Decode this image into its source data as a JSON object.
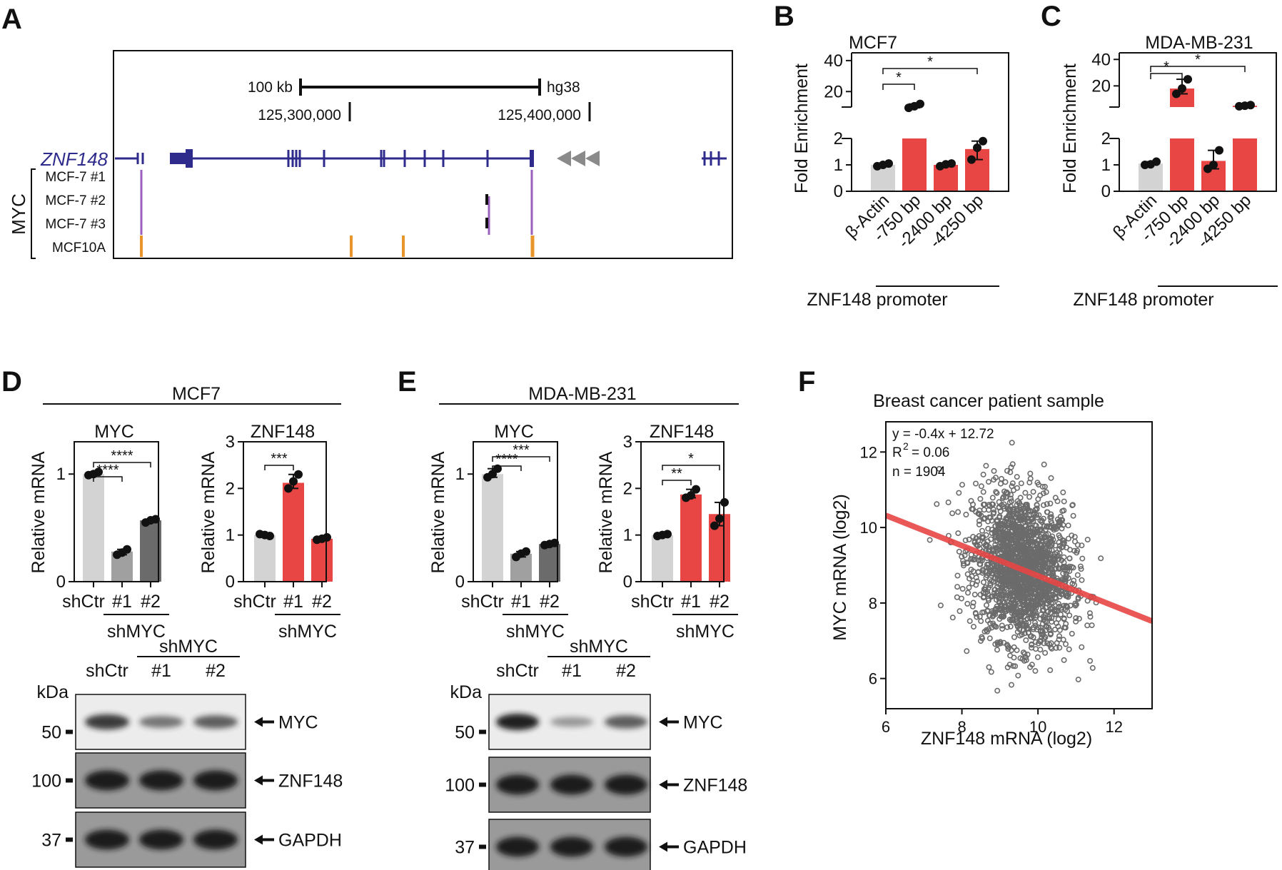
{
  "panels": {
    "A": {
      "letter": "A",
      "scale_label": "100 kb",
      "assembly": "hg38",
      "coord_left": "125,300,000",
      "coord_right": "125,400,000",
      "gene": "ZNF148",
      "group_label": "MYC",
      "tracks": [
        "MCF-7 #1",
        "MCF-7 #2",
        "MCF-7 #3",
        "MCF10A"
      ],
      "colors": {
        "gene": "#2e2b8c",
        "mcf7": "#9b5fc0",
        "mcf10a": "#e8962b",
        "arrows": "#8a8a8a"
      }
    },
    "B": {
      "letter": "B"
    },
    "C": {
      "letter": "C"
    },
    "D": {
      "letter": "D",
      "cell_line": "MCF7"
    },
    "E": {
      "letter": "E",
      "cell_line": "MDA-MB-231"
    },
    "F": {
      "letter": "F"
    }
  },
  "chart_data": [
    {
      "id": "B",
      "type": "bar",
      "title": "MCF7",
      "ylabel": "Fold Enrichment",
      "categories": [
        "β-Actin",
        "-750 bp",
        "-2400 bp",
        "-4250 bp"
      ],
      "group_label": "ZNF148 promoter",
      "values": [
        1.0,
        10.0,
        1.0,
        1.6
      ],
      "points": [
        [
          0.95,
          1.05,
          1.0
        ],
        [
          9.5,
          12.0,
          10.5
        ],
        [
          0.95,
          1.05,
          1.02
        ],
        [
          1.2,
          1.9,
          1.65
        ]
      ],
      "bar_colors": [
        "#d3d3d3",
        "#e84545",
        "#e84545",
        "#e84545"
      ],
      "y_ticks_low": [
        0,
        1,
        2
      ],
      "y_ticks_high": [
        20,
        40
      ],
      "ylim_low": [
        0,
        2
      ],
      "ylim_high": [
        10,
        45
      ],
      "axis_break": true,
      "significance": [
        {
          "from": 0,
          "to": 1,
          "label": "*"
        },
        {
          "from": 0,
          "to": 3,
          "label": "*"
        }
      ]
    },
    {
      "id": "C",
      "type": "bar",
      "title": "MDA-MB-231",
      "ylabel": "Fold Enrichment",
      "categories": [
        "β-Actin",
        "-750 bp",
        "-2400 bp",
        "-4250 bp"
      ],
      "group_label": "ZNF148 promoter",
      "values": [
        1.05,
        18.0,
        1.15,
        5.0
      ],
      "points": [
        [
          1.0,
          1.12,
          1.02
        ],
        [
          14.0,
          25.0,
          18.0
        ],
        [
          0.85,
          1.55,
          1.0
        ],
        [
          4.6,
          5.5,
          5.0
        ]
      ],
      "bar_colors": [
        "#d3d3d3",
        "#e84545",
        "#e84545",
        "#e84545"
      ],
      "y_ticks_low": [
        0,
        1,
        2
      ],
      "y_ticks_high": [
        20,
        40
      ],
      "ylim_low": [
        0,
        2
      ],
      "ylim_high": [
        4,
        45
      ],
      "axis_break": true,
      "significance": [
        {
          "from": 0,
          "to": 1,
          "label": "*"
        },
        {
          "from": 0,
          "to": 3,
          "label": "*"
        }
      ]
    },
    {
      "id": "D1",
      "type": "bar",
      "title": "MYC",
      "ylabel": "Relative mRNA",
      "categories": [
        "shCtr",
        "#1",
        "#2"
      ],
      "group_label": "shMYC",
      "values": [
        1.0,
        0.28,
        0.57
      ],
      "points": [
        [
          0.99,
          1.02,
          1.0
        ],
        [
          0.25,
          0.3,
          0.27
        ],
        [
          0.55,
          0.58,
          0.57
        ]
      ],
      "bar_colors": [
        "#d3d3d3",
        "#a0a0a0",
        "#6b6b6b"
      ],
      "y_ticks": [
        0,
        1
      ],
      "ylim": [
        0,
        1.3
      ],
      "significance": [
        {
          "from": 0,
          "to": 1,
          "label": "****"
        },
        {
          "from": 0,
          "to": 2,
          "label": "****"
        }
      ]
    },
    {
      "id": "D2",
      "type": "bar",
      "title": "ZNF148",
      "ylabel": "Relative mRNA",
      "categories": [
        "shCtr",
        "#1",
        "#2"
      ],
      "group_label": "shMYC",
      "values": [
        1.0,
        2.12,
        0.92
      ],
      "points": [
        [
          1.02,
          0.98,
          1.0
        ],
        [
          2.0,
          2.3,
          2.15
        ],
        [
          0.9,
          0.95,
          0.92
        ]
      ],
      "bar_colors": [
        "#d3d3d3",
        "#e84545",
        "#e84545"
      ],
      "y_ticks": [
        0,
        1,
        2,
        3
      ],
      "ylim": [
        0,
        3
      ],
      "significance": [
        {
          "from": 0,
          "to": 1,
          "label": "***"
        }
      ]
    },
    {
      "id": "E1",
      "type": "bar",
      "title": "MYC",
      "ylabel": "Relative mRNA",
      "categories": [
        "shCtr",
        "#1",
        "#2"
      ],
      "group_label": "shMYC",
      "values": [
        1.0,
        0.26,
        0.35
      ],
      "points": [
        [
          0.97,
          1.05,
          1.0
        ],
        [
          0.23,
          0.28,
          0.26
        ],
        [
          0.34,
          0.36,
          0.35
        ]
      ],
      "bar_colors": [
        "#d3d3d3",
        "#a0a0a0",
        "#6b6b6b"
      ],
      "y_ticks": [
        0,
        1
      ],
      "ylim": [
        0,
        1.3
      ],
      "significance": [
        {
          "from": 0,
          "to": 1,
          "label": "****"
        },
        {
          "from": 0,
          "to": 2,
          "label": "***"
        }
      ]
    },
    {
      "id": "E2",
      "type": "bar",
      "title": "ZNF148",
      "ylabel": "Relative mRNA",
      "categories": [
        "shCtr",
        "#1",
        "#2"
      ],
      "group_label": "shMYC",
      "values": [
        1.0,
        1.87,
        1.45
      ],
      "points": [
        [
          0.98,
          1.02,
          1.0
        ],
        [
          1.8,
          1.98,
          1.85
        ],
        [
          1.2,
          1.7,
          1.35
        ]
      ],
      "bar_colors": [
        "#d3d3d3",
        "#e84545",
        "#e84545"
      ],
      "y_ticks": [
        0,
        1,
        2,
        3
      ],
      "ylim": [
        0,
        3
      ],
      "significance": [
        {
          "from": 0,
          "to": 1,
          "label": "**"
        },
        {
          "from": 0,
          "to": 2,
          "label": "*"
        }
      ]
    },
    {
      "id": "F",
      "type": "scatter",
      "title": "Breast cancer patient sample",
      "xlabel": "ZNF148 mRNA (log2)",
      "ylabel": "MYC mRNA (log2)",
      "xlim": [
        6,
        13
      ],
      "ylim": [
        5.2,
        12.8
      ],
      "x_ticks": [
        6,
        8,
        10,
        12
      ],
      "y_ticks": [
        6,
        8,
        10,
        12
      ],
      "annotations": [
        "y = -0.4x + 12.72",
        "R",
        "2",
        "= 0.06",
        "n = 1904"
      ],
      "regression": {
        "slope": -0.4,
        "intercept": 12.72
      },
      "n": 1904,
      "center": [
        9.6,
        8.9
      ],
      "sd": [
        0.65,
        1.0
      ],
      "point_color": "#6b6b6b",
      "line_color": "#e84545"
    }
  ],
  "blots": {
    "D": {
      "group_label": "shMYC",
      "lanes": [
        "shCtr",
        "#1",
        "#2"
      ],
      "kda_label": "kDa",
      "rows": [
        {
          "marker": "50",
          "label": "MYC",
          "intensity": [
            0.85,
            0.6,
            0.7
          ]
        },
        {
          "marker": "100",
          "label": "ZNF148",
          "intensity": [
            0.95,
            0.95,
            0.95
          ]
        },
        {
          "marker": "37",
          "label": "GAPDH",
          "intensity": [
            0.9,
            0.9,
            0.9
          ]
        }
      ]
    },
    "E": {
      "group_label": "shMYC",
      "lanes": [
        "shCtr",
        "#1",
        "#2"
      ],
      "kda_label": "kDa",
      "rows": [
        {
          "marker": "50",
          "label": "MYC",
          "intensity": [
            0.95,
            0.45,
            0.7
          ]
        },
        {
          "marker": "100",
          "label": "ZNF148",
          "intensity": [
            0.95,
            0.95,
            0.95
          ]
        },
        {
          "marker": "37",
          "label": "GAPDH",
          "intensity": [
            0.95,
            0.95,
            0.95
          ]
        }
      ]
    }
  }
}
